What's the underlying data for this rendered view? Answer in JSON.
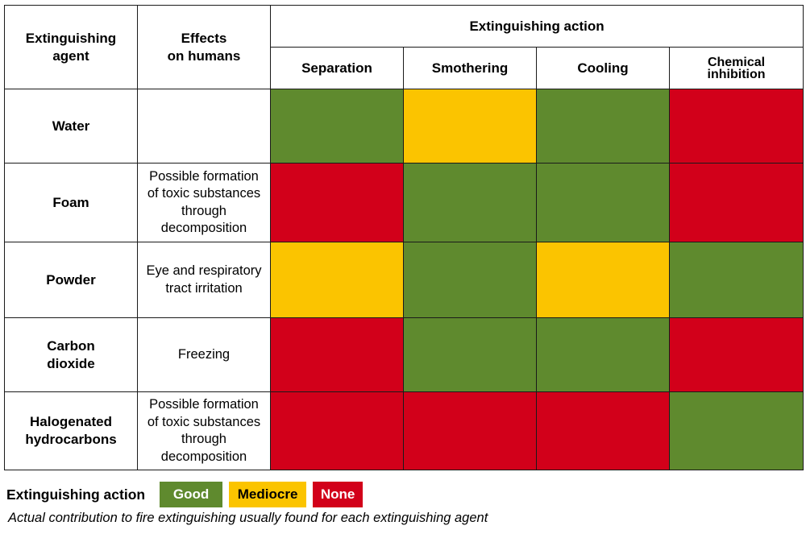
{
  "header": {
    "agent_label": "Extinguishing\nagent",
    "effects_label": "Effects\non humans",
    "action_label": "Extinguishing action",
    "columns": [
      "Separation",
      "Smothering",
      "Cooling",
      "Chemical\ninhibition"
    ]
  },
  "rows": [
    {
      "agent": "Water",
      "effect": "",
      "ratings": [
        "good",
        "mediocre",
        "good",
        "none"
      ]
    },
    {
      "agent": "Foam",
      "effect": "Possible formation\nof toxic substances\nthrough\ndecomposition",
      "ratings": [
        "none",
        "good",
        "good",
        "none"
      ]
    },
    {
      "agent": "Powder",
      "effect": "Eye and respiratory\ntract irritation",
      "ratings": [
        "mediocre",
        "good",
        "mediocre",
        "good"
      ]
    },
    {
      "agent": "Carbon\ndioxide",
      "effect": "Freezing",
      "ratings": [
        "none",
        "good",
        "good",
        "none"
      ]
    },
    {
      "agent": "Halogenated\nhydrocarbons",
      "effect": "Possible formation\nof toxic substances\nthrough\ndecomposition",
      "ratings": [
        "none",
        "none",
        "none",
        "good"
      ]
    }
  ],
  "legend": {
    "title": "Extinguishing action",
    "good": "Good",
    "mediocre": "Mediocre",
    "none": "None"
  },
  "caption": "Actual contribution to fire extinguishing usually found for each extinguishing agent",
  "colors": {
    "good": "#5f8a2e",
    "mediocre": "#fbc400",
    "none": "#d2001a"
  }
}
